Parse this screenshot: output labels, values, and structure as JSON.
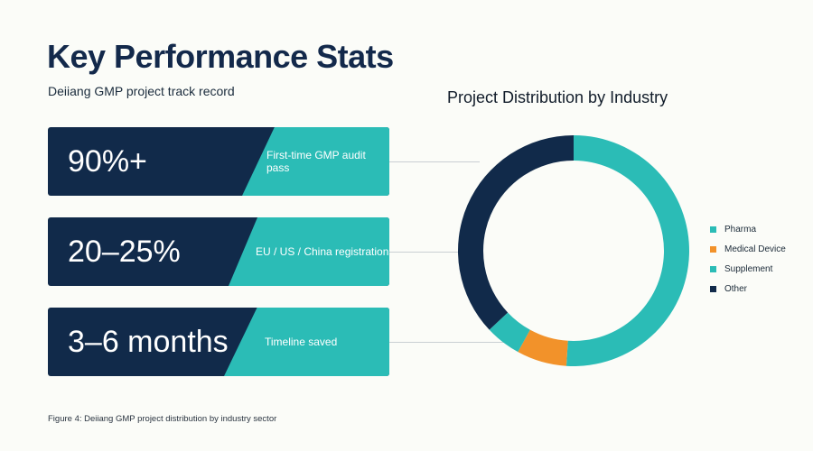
{
  "header": {
    "title": "Key Performance Stats",
    "subtitle": "Deiiang GMP project track record"
  },
  "stats": [
    {
      "value": "90%+",
      "label": "First-time GMP audit pass"
    },
    {
      "value": "20–25%",
      "label": "EU / US / China registration"
    },
    {
      "value": "3–6 months",
      "label": "Timeline saved"
    }
  ],
  "colors": {
    "navy": "#112a4a",
    "teal": "#2bbcb6",
    "orange": "#f2922a"
  },
  "caption": "Figure 4: Deiiang GMP project distribution by industry sector",
  "chart_data": {
    "type": "pie",
    "title": "Project Distribution by Industry",
    "donut": true,
    "legend_position": "right",
    "series": [
      {
        "name": "Pharma",
        "value": 51,
        "color": "#2bbcb6"
      },
      {
        "name": "Medical Device",
        "value": 7,
        "color": "#f2922a"
      },
      {
        "name": "Supplement",
        "value": 5,
        "color": "#2bbcb6"
      },
      {
        "name": "Other",
        "value": 37,
        "color": "#112a4a"
      }
    ]
  }
}
